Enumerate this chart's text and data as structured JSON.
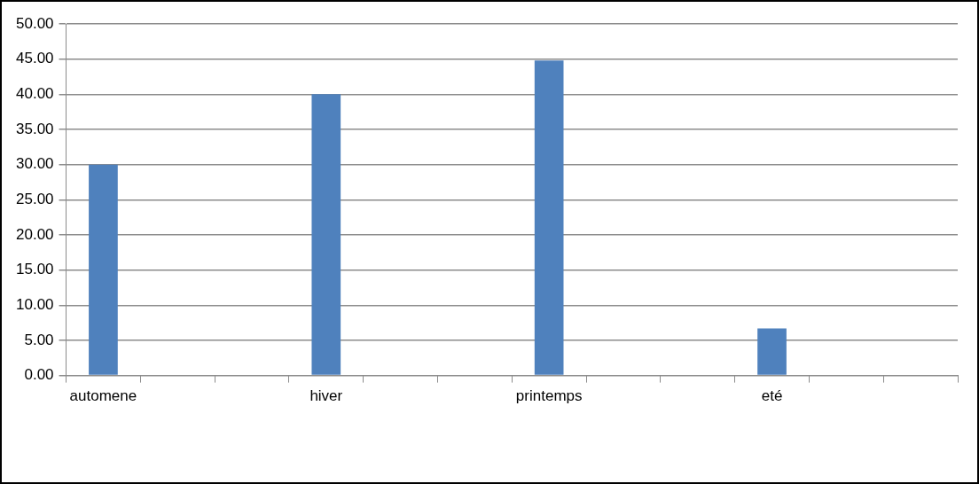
{
  "chart_data": {
    "type": "bar",
    "categories": [
      "automene",
      null,
      null,
      "hiver",
      null,
      null,
      "printemps",
      null,
      null,
      "eté",
      null,
      null
    ],
    "values": [
      30,
      null,
      null,
      40,
      null,
      null,
      44.8,
      null,
      null,
      6.7,
      null,
      null
    ],
    "color": "#4f81bd",
    "ylim": [
      0,
      50
    ],
    "yticks": [
      {
        "value": 0,
        "label": "0.00"
      },
      {
        "value": 5,
        "label": "5.00"
      },
      {
        "value": 10,
        "label": "10.00"
      },
      {
        "value": 15,
        "label": "15.00"
      },
      {
        "value": 20,
        "label": "20.00"
      },
      {
        "value": 25,
        "label": "25.00"
      },
      {
        "value": 30,
        "label": "30.00"
      },
      {
        "value": 35,
        "label": "35.00"
      },
      {
        "value": 40,
        "label": "40.00"
      },
      {
        "value": 45,
        "label": "45.00"
      },
      {
        "value": 50,
        "label": "50.00"
      }
    ],
    "grid": "y",
    "legend": false
  }
}
